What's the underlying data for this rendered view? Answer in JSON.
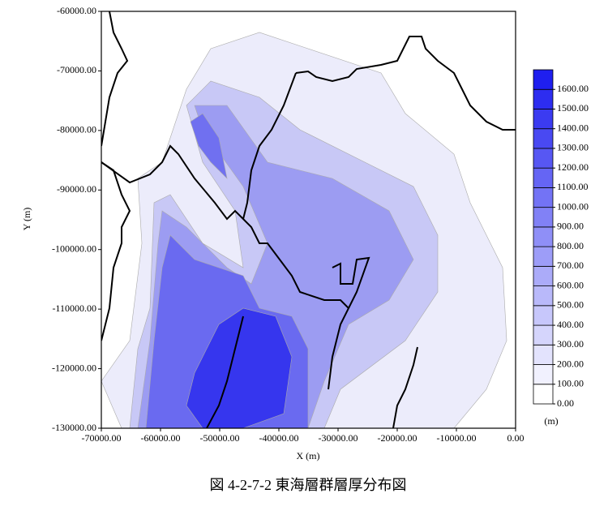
{
  "chart_data": {
    "type": "contour",
    "caption": "図 4-2-7-2 東海層群層厚分布図",
    "xlabel": "X (m)",
    "ylabel": "Y (m)",
    "xlim": [
      -70000,
      0
    ],
    "ylim": [
      -130000,
      -60000
    ],
    "xticks": [
      {
        "value": -70000,
        "label": "-70000.00"
      },
      {
        "value": -60000,
        "label": "-60000.00"
      },
      {
        "value": -50000,
        "label": "-50000.00"
      },
      {
        "value": -40000,
        "label": "-40000.00"
      },
      {
        "value": -30000,
        "label": "-30000.00"
      },
      {
        "value": -20000,
        "label": "-20000.00"
      },
      {
        "value": -10000,
        "label": "-10000.00"
      },
      {
        "value": 0,
        "label": "0.00"
      }
    ],
    "yticks": [
      {
        "value": -130000,
        "label": "-130000.00"
      },
      {
        "value": -120000,
        "label": "-120000.00"
      },
      {
        "value": -110000,
        "label": "-110000.00"
      },
      {
        "value": -100000,
        "label": "-100000.00"
      },
      {
        "value": -90000,
        "label": "-90000.00"
      },
      {
        "value": -80000,
        "label": "-80000.00"
      },
      {
        "value": -70000,
        "label": "-70000.00"
      },
      {
        "value": -60000,
        "label": "-60000.00"
      }
    ],
    "colorbar": {
      "label": "(m)",
      "lim": [
        0,
        1700
      ],
      "ticks": [
        {
          "value": 0,
          "label": "0.00"
        },
        {
          "value": 100,
          "label": "100.00"
        },
        {
          "value": 200,
          "label": "200.00"
        },
        {
          "value": 300,
          "label": "300.00"
        },
        {
          "value": 400,
          "label": "400.00"
        },
        {
          "value": 500,
          "label": "500.00"
        },
        {
          "value": 600,
          "label": "600.00"
        },
        {
          "value": 700,
          "label": "700.00"
        },
        {
          "value": 800,
          "label": "800.00"
        },
        {
          "value": 900,
          "label": "900.00"
        },
        {
          "value": 1000,
          "label": "1000.00"
        },
        {
          "value": 1100,
          "label": "1100.00"
        },
        {
          "value": 1200,
          "label": "1200.00"
        },
        {
          "value": 1300,
          "label": "1300.00"
        },
        {
          "value": 1400,
          "label": "1400.00"
        },
        {
          "value": 1500,
          "label": "1500.00"
        },
        {
          "value": 1600,
          "label": "1600.00"
        }
      ],
      "colors": [
        "#ffffff",
        "#f1f1fe",
        "#e3e3fd",
        "#d5d5fc",
        "#c7c7fb",
        "#b9b9fa",
        "#ababf9",
        "#9d9df8",
        "#8f8ff7",
        "#8181f6",
        "#7373f5",
        "#6565f4",
        "#5757f3",
        "#4949f2",
        "#3b3bf1",
        "#2d2df0",
        "#1f1fef"
      ]
    }
  }
}
